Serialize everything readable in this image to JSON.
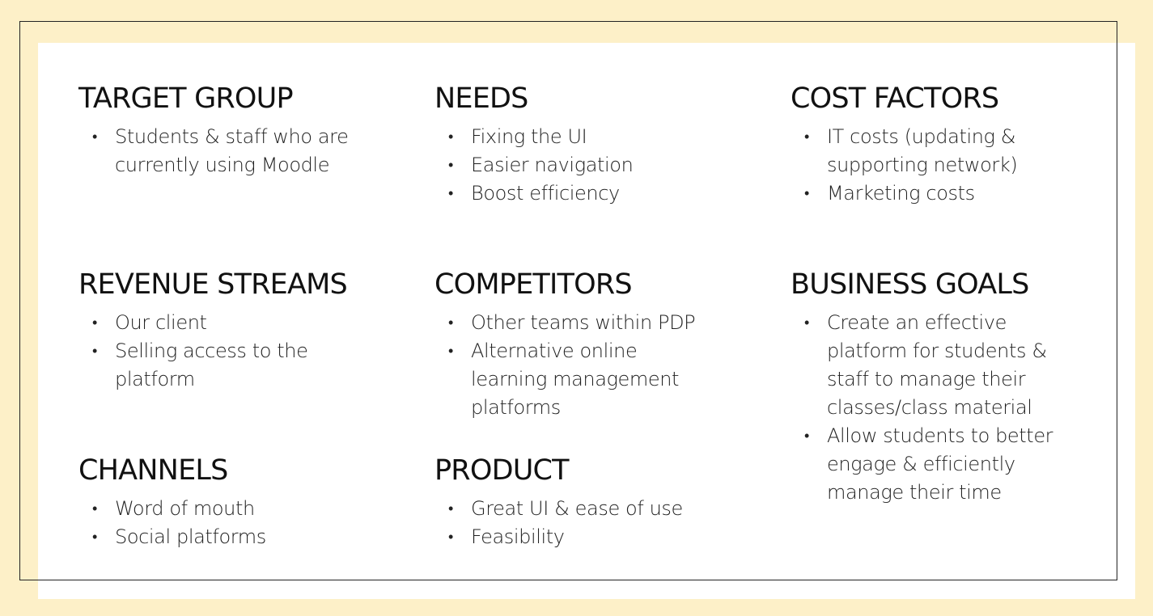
{
  "sections": {
    "target_group": {
      "title": "TARGET GROUP",
      "items": [
        [
          "Students & staff who are",
          "currently using Moodle"
        ]
      ]
    },
    "needs": {
      "title": "NEEDS",
      "items": [
        [
          "Fixing the UI"
        ],
        [
          "Easier navigation"
        ],
        [
          "Boost efficiency"
        ]
      ]
    },
    "cost_factors": {
      "title": "COST FACTORS",
      "items": [
        [
          "IT costs (updating &",
          "supporting network)"
        ],
        [
          "Marketing costs"
        ]
      ]
    },
    "revenue_streams": {
      "title": "REVENUE STREAMS",
      "items": [
        [
          "Our client"
        ],
        [
          "Selling access to the",
          "platform"
        ]
      ]
    },
    "competitors": {
      "title": "COMPETITORS",
      "items": [
        [
          "Other teams within PDP"
        ],
        [
          "Alternative online",
          "learning management",
          "platforms"
        ]
      ]
    },
    "business_goals": {
      "title": "BUSINESS GOALS",
      "items": [
        [
          "Create an effective",
          "platform for students &",
          "staff to manage their",
          "classes/class material"
        ],
        [
          "Allow students to better",
          "engage & efficiently",
          "manage their time"
        ]
      ]
    },
    "channels": {
      "title": "CHANNELS",
      "items": [
        [
          "Word of mouth"
        ],
        [
          "Social platforms"
        ]
      ]
    },
    "product": {
      "title": "PRODUCT",
      "items": [
        [
          "Great UI & ease of use"
        ],
        [
          "Feasibility"
        ]
      ]
    }
  },
  "colors": {
    "background": "#fdf0c8",
    "panel": "#ffffff",
    "text": "#1a1a1a",
    "frame": "#222222"
  }
}
